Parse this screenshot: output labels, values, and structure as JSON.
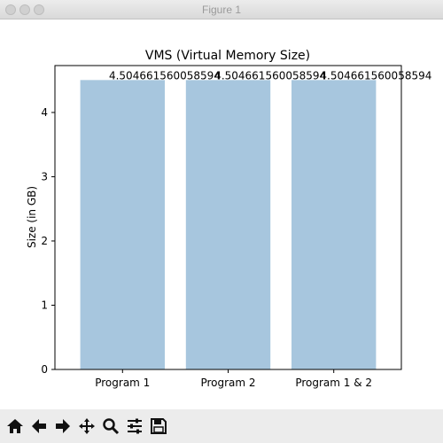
{
  "window": {
    "title": "Figure 1"
  },
  "toolbar": {
    "tools": [
      {
        "name": "home-icon"
      },
      {
        "name": "back-icon"
      },
      {
        "name": "forward-icon"
      },
      {
        "name": "pan-icon"
      },
      {
        "name": "zoom-icon"
      },
      {
        "name": "configure-subplots-icon"
      },
      {
        "name": "save-icon"
      }
    ]
  },
  "chart_data": {
    "type": "bar",
    "title": "VMS (Virtual Memory Size)",
    "xlabel": "",
    "ylabel": "Size (in GB)",
    "categories": [
      "Program 1",
      "Program 2",
      "Program  1 & 2"
    ],
    "values": [
      4.504661560058594,
      4.504661560058594,
      4.504661560058594
    ],
    "data_labels": [
      "4.504661560058594",
      "4.504661560058594",
      "4.504661560058594"
    ],
    "ylim": [
      0,
      4.73
    ],
    "yticks": [
      0,
      1,
      2,
      3,
      4
    ],
    "bar_color": "#a7c6de",
    "grid": false,
    "legend": "none"
  }
}
